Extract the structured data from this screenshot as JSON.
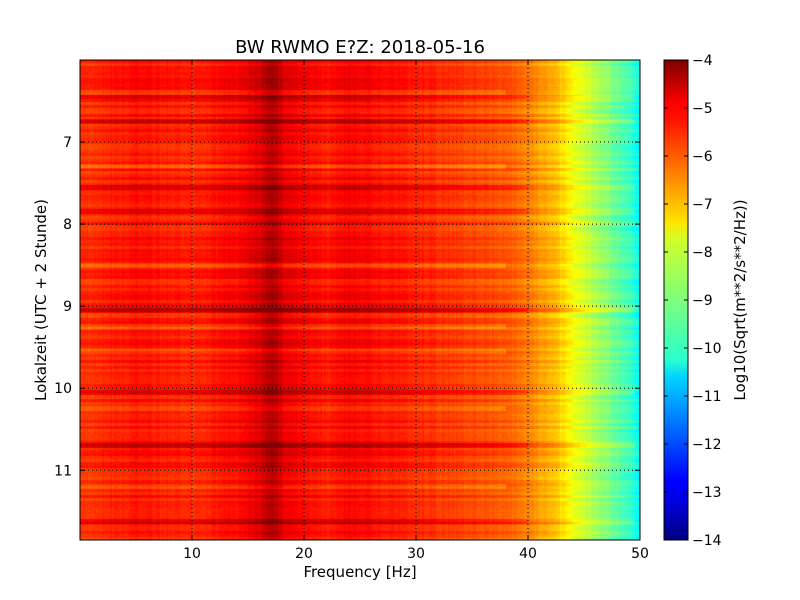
{
  "chart_data": {
    "type": "heatmap",
    "title": "BW RWMO E?Z: 2018-05-16",
    "xlabel": "Frequency [Hz]",
    "ylabel": "Lokalzeit (UTC + 2 Stunde)",
    "xlim": [
      0,
      50
    ],
    "ylim": [
      11.85,
      6.0
    ],
    "x_ticks": [
      10,
      20,
      30,
      40,
      50
    ],
    "y_ticks": [
      7,
      8,
      9,
      10,
      11
    ],
    "grid": true,
    "colorbar": {
      "label": "Log10(Sqrt(m**2/s**2/Hz))",
      "range": [
        -14,
        -4
      ],
      "ticks": [
        -4,
        -5,
        -6,
        -7,
        -8,
        -9,
        -10,
        -11,
        -12,
        -13,
        -14
      ],
      "colormap": "jet"
    },
    "profile": {
      "frequency_hz": [
        0,
        2,
        5,
        10,
        14,
        16,
        17.2,
        18.5,
        20,
        22,
        24,
        27,
        30,
        35,
        38,
        40,
        42,
        43,
        44,
        45,
        46,
        47,
        48,
        49,
        50
      ],
      "level": [
        -5.8,
        -5.6,
        -5.4,
        -5.6,
        -5.3,
        -4.9,
        -4.4,
        -5.1,
        -5.3,
        -5.5,
        -5.2,
        -5.4,
        -5.6,
        -5.9,
        -6.1,
        -6.5,
        -7.0,
        -7.4,
        -7.8,
        -8.2,
        -8.6,
        -8.9,
        -9.3,
        -9.7,
        -10.2
      ]
    },
    "strong_bands_hour": [
      6.45,
      6.75,
      7.55,
      7.85,
      9.05,
      10.05,
      10.7,
      11.62
    ],
    "quiet_bands_hour": [
      6.4,
      7.3,
      8.5,
      9.25,
      9.55,
      10.25,
      11.2
    ]
  }
}
